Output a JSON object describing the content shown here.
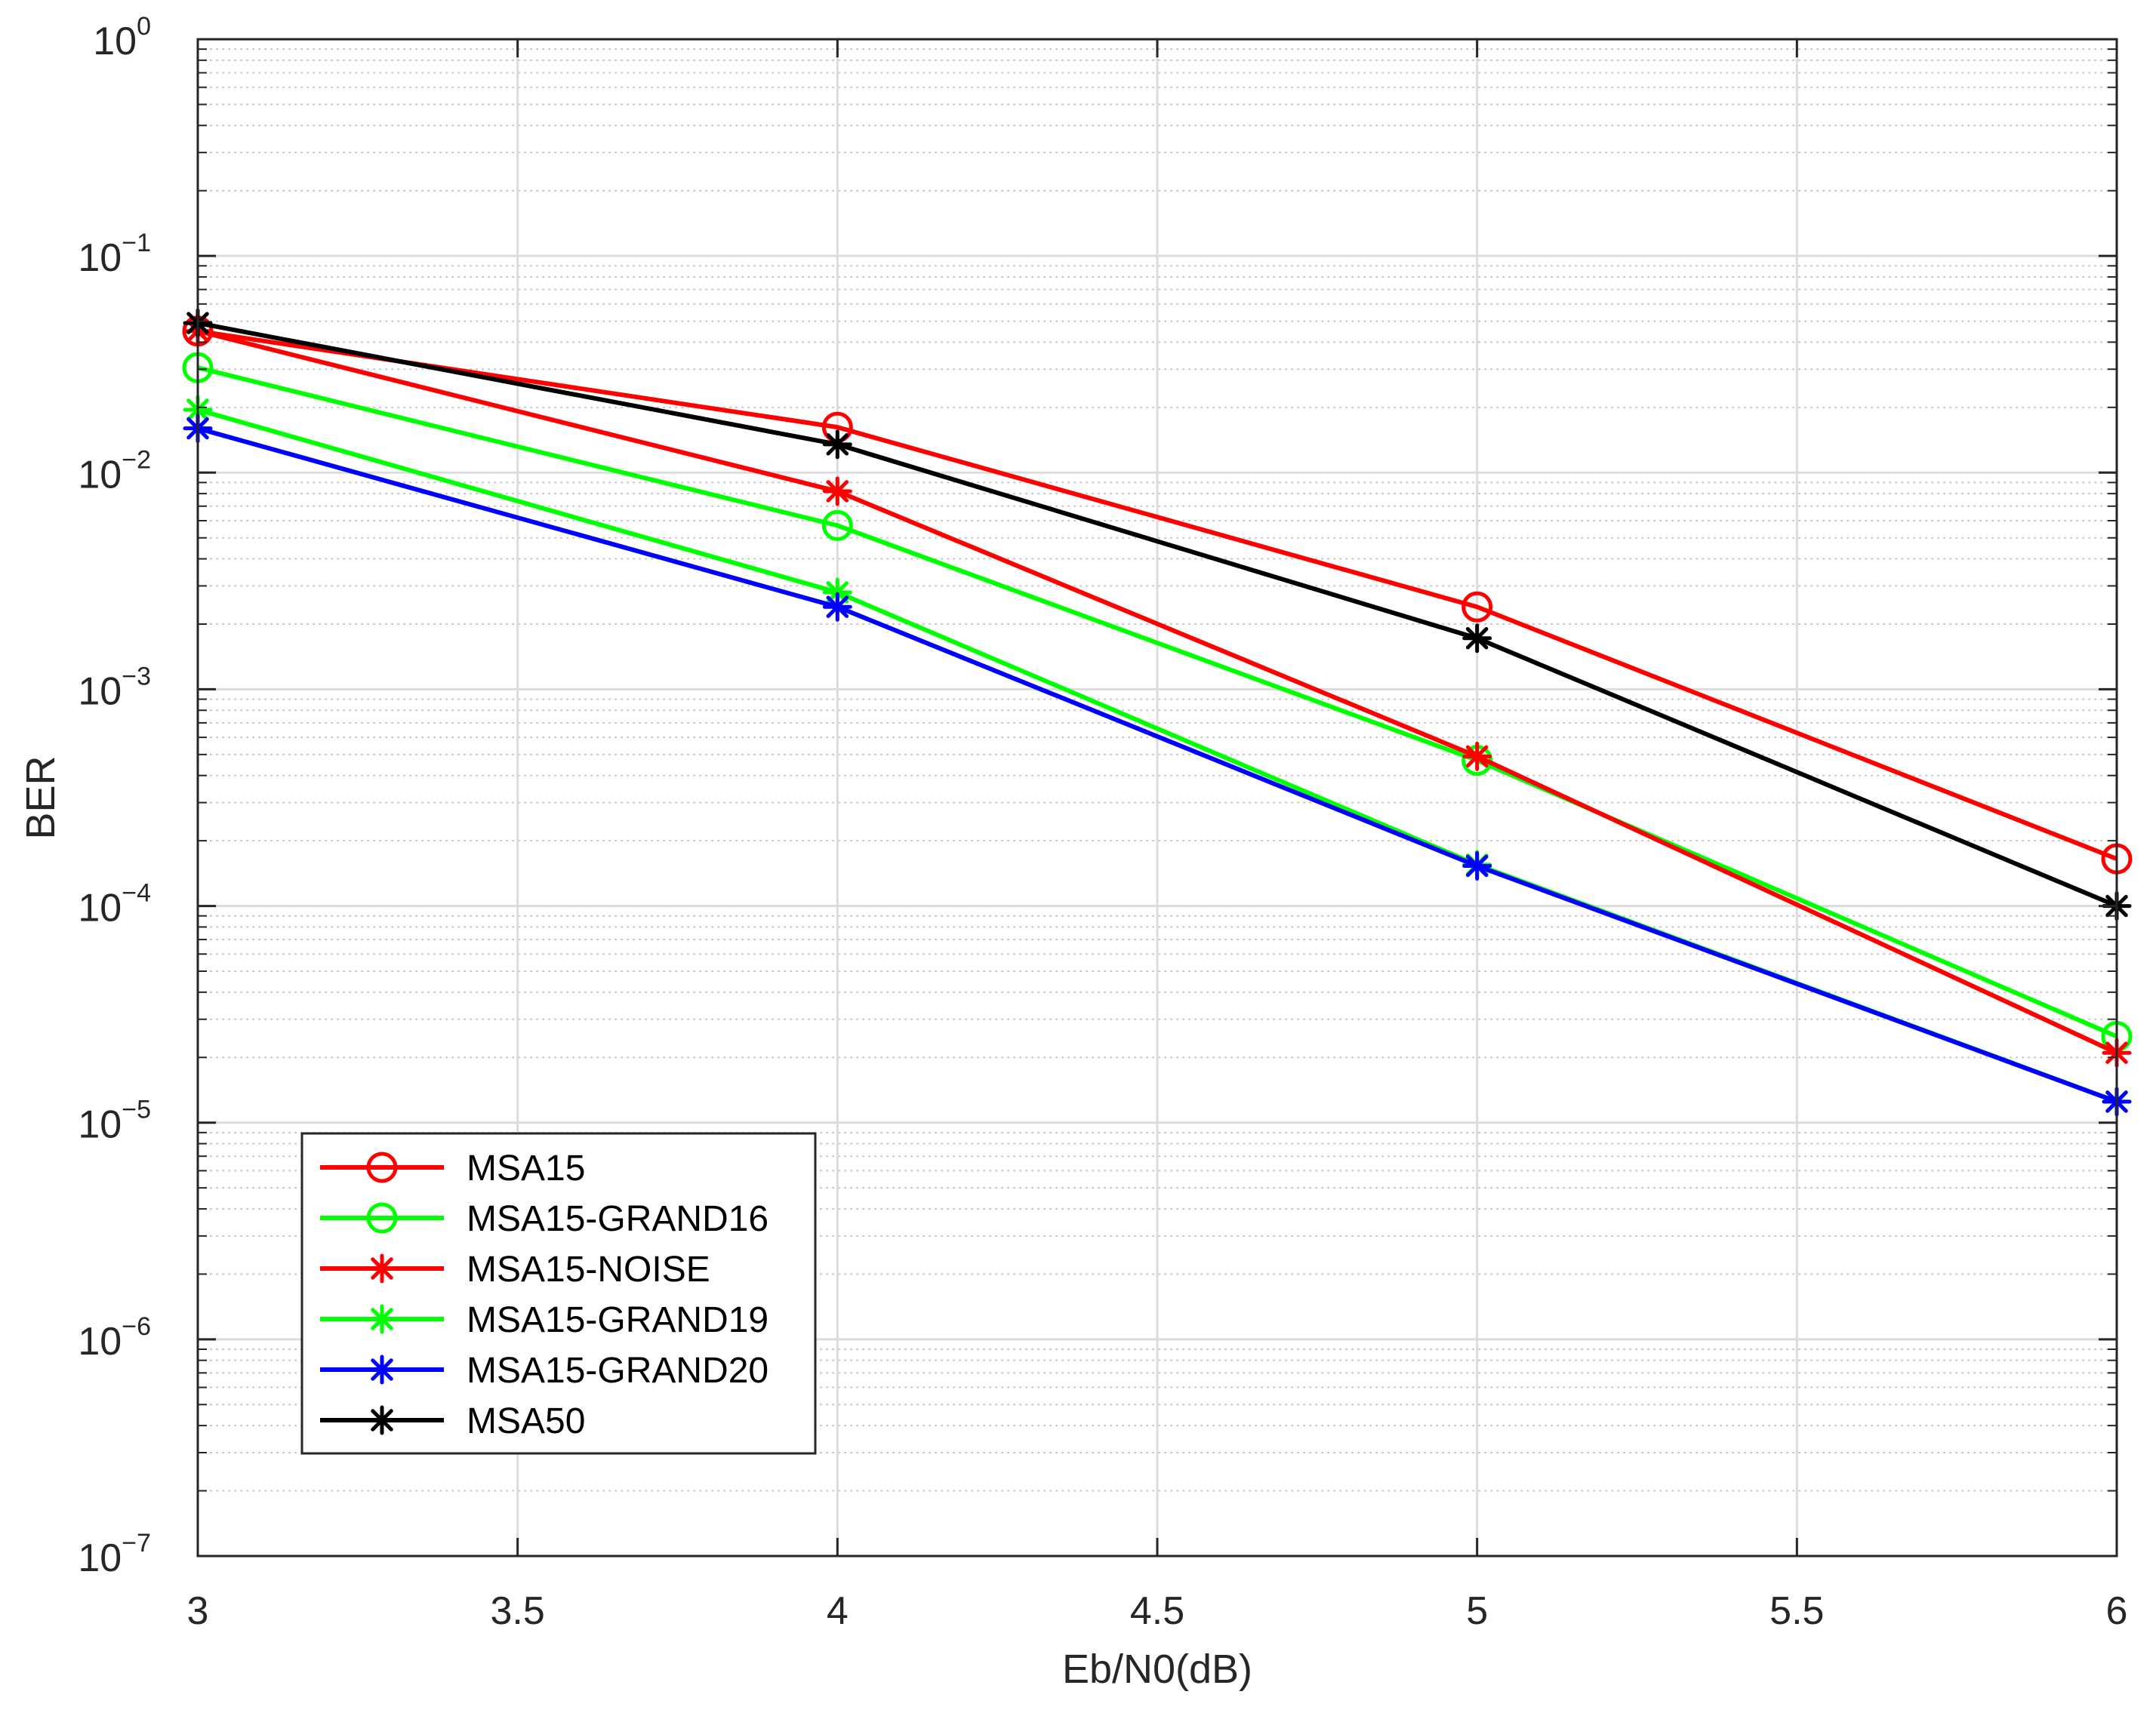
{
  "chart_data": {
    "type": "line",
    "title": "",
    "xlabel": "Eb/N0(dB)",
    "ylabel": "BER",
    "xscale": "linear",
    "yscale": "log",
    "xlim": [
      3,
      6
    ],
    "ylim": [
      1e-07,
      1
    ],
    "grid": true,
    "minor_grid": true,
    "legend_position": "bottom-left",
    "x_ticks": [
      {
        "value": 3,
        "label": "3"
      },
      {
        "value": 3.5,
        "label": "3.5"
      },
      {
        "value": 4,
        "label": "4"
      },
      {
        "value": 4.5,
        "label": "4.5"
      },
      {
        "value": 5,
        "label": "5"
      },
      {
        "value": 5.5,
        "label": "5.5"
      },
      {
        "value": 6,
        "label": "6"
      }
    ],
    "y_ticks": [
      {
        "value": 1e-07,
        "base": "10",
        "exponent": "−7"
      },
      {
        "value": 1e-06,
        "base": "10",
        "exponent": "−6"
      },
      {
        "value": 1e-05,
        "base": "10",
        "exponent": "−5"
      },
      {
        "value": 0.0001,
        "base": "10",
        "exponent": "−4"
      },
      {
        "value": 0.001,
        "base": "10",
        "exponent": "−3"
      },
      {
        "value": 0.01,
        "base": "10",
        "exponent": "−2"
      },
      {
        "value": 0.1,
        "base": "10",
        "exponent": "−1"
      },
      {
        "value": 1,
        "base": "10",
        "exponent": "0"
      }
    ],
    "x": [
      3,
      4,
      5,
      6
    ],
    "series": [
      {
        "name": "MSA15",
        "color": "#ff0000",
        "marker": "circle",
        "values": [
          0.045,
          0.0162,
          0.0024,
          0.000165
        ]
      },
      {
        "name": "MSA15-GRAND16",
        "color": "#00ff00",
        "marker": "circle",
        "values": [
          0.0305,
          0.0057,
          0.00047,
          2.5e-05
        ]
      },
      {
        "name": "MSA15-NOISE",
        "color": "#ff0000",
        "marker": "asterisk",
        "values": [
          0.045,
          0.0082,
          0.00049,
          2.1e-05
        ]
      },
      {
        "name": "MSA15-GRAND19",
        "color": "#00ff00",
        "marker": "asterisk",
        "values": [
          0.0195,
          0.0028,
          0.000155,
          1.25e-05
        ]
      },
      {
        "name": "MSA15-GRAND20",
        "color": "#0000ff",
        "marker": "asterisk",
        "values": [
          0.016,
          0.0024,
          0.000153,
          1.25e-05
        ]
      },
      {
        "name": "MSA50",
        "color": "#000000",
        "marker": "asterisk",
        "values": [
          0.049,
          0.0135,
          0.00172,
          0.0001
        ]
      }
    ]
  }
}
